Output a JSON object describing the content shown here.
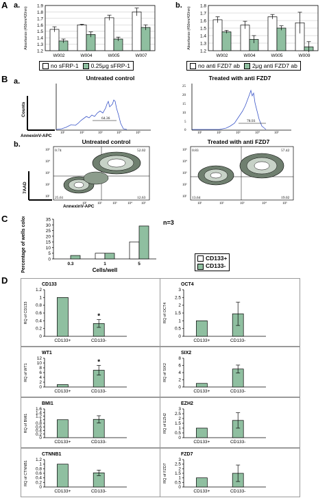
{
  "panel_labels": {
    "A": "A",
    "A_a": "a.",
    "A_b": "b.",
    "B": "B",
    "B_a": "a.",
    "B_b": "b.",
    "C": "C",
    "D": "D"
  },
  "colors": {
    "bar_white": "#ffffff",
    "bar_green": "#8fbfa0",
    "line_blue": "#3a55c8"
  },
  "chart_data": [
    {
      "id": "A_a",
      "type": "bar",
      "ylabel": "Absorbance (450nm/420nm)",
      "categories": [
        "W002",
        "W004",
        "W005",
        "W007"
      ],
      "ylim": [
        1.2,
        1.9
      ],
      "yticks": [
        "1.9",
        "1.8",
        "1.7",
        "1.6",
        "1.5",
        "1.4",
        "1.3",
        "1.2"
      ],
      "series": [
        {
          "name": "no sFRP-1",
          "values": [
            1.53,
            1.6,
            1.71,
            1.8
          ],
          "errors": [
            0.04,
            0.01,
            0.04,
            0.06
          ]
        },
        {
          "name": "0.25μg sFRP-1",
          "values": [
            1.35,
            1.45,
            1.38,
            1.56
          ],
          "errors": [
            0.03,
            0.04,
            0.03,
            0.04
          ]
        }
      ]
    },
    {
      "id": "A_b",
      "type": "bar",
      "ylabel": "Absorbance (450nm/420nm)",
      "categories": [
        "W002",
        "W004",
        "W005",
        "W009"
      ],
      "ylim": [
        1.2,
        1.8
      ],
      "yticks": [
        "1.8",
        "1.7",
        "1.6",
        "1.5",
        "1.4",
        "1.3",
        "1.2"
      ],
      "series": [
        {
          "name": "no anti FZD7 ab",
          "values": [
            1.61,
            1.54,
            1.65,
            1.57
          ],
          "errors": [
            0.04,
            0.05,
            0.03,
            0.14
          ]
        },
        {
          "name": "2μg anti FZD7 ab",
          "values": [
            1.45,
            1.35,
            1.5,
            1.25
          ],
          "errors": [
            0.02,
            0.05,
            0.03,
            0.07
          ]
        }
      ]
    },
    {
      "id": "C",
      "type": "bar",
      "title": "n=3",
      "xlabel": "Cells/well",
      "ylabel": "Percentage of wells colonized",
      "categories": [
        "0.3",
        "1",
        "5"
      ],
      "ylim": [
        0,
        35
      ],
      "yticks": [
        "35",
        "30",
        "25",
        "20",
        "15",
        "10",
        "5",
        "0"
      ],
      "series": [
        {
          "name": "CD133+",
          "values": [
            0,
            5,
            15
          ]
        },
        {
          "name": "CD133-",
          "values": [
            3,
            5,
            29
          ]
        }
      ]
    },
    {
      "id": "D_CD133",
      "type": "bar",
      "title": "CD133",
      "ylabel": "RQ of CD133",
      "categories": [
        "CD133+",
        "CD133-"
      ],
      "ylim": [
        0,
        1.2
      ],
      "yticks": [
        "1.2",
        "1",
        "0.8",
        "0.6",
        "0.4",
        "0.2",
        "0"
      ],
      "values": [
        1.0,
        0.33
      ],
      "errors": [
        0,
        0.1
      ],
      "star": [
        false,
        true
      ]
    },
    {
      "id": "D_OCT4",
      "type": "bar",
      "title": "OCT4",
      "ylabel": "RQ of OCT4",
      "categories": [
        "CD133+",
        "CD133-"
      ],
      "ylim": [
        0,
        3
      ],
      "yticks": [
        "3",
        "2.5",
        "2",
        "1.5",
        "1",
        "0.5",
        "0"
      ],
      "values": [
        1.0,
        1.45
      ],
      "errors": [
        0,
        0.75
      ],
      "star": [
        false,
        false
      ]
    },
    {
      "id": "D_WT1",
      "type": "bar",
      "title": "WT1",
      "ylabel": "RQ of WT1",
      "categories": [
        "CD133+",
        "CD133-"
      ],
      "ylim": [
        0,
        12
      ],
      "yticks": [
        "12",
        "10",
        "8",
        "6",
        "4",
        "2",
        "0"
      ],
      "values": [
        1.0,
        7.0
      ],
      "errors": [
        0,
        2.0
      ],
      "star": [
        false,
        true
      ]
    },
    {
      "id": "D_SIX2",
      "type": "bar",
      "title": "SIX2",
      "ylabel": "RQ of SIX2",
      "categories": [
        "CD133+",
        "CD133-"
      ],
      "ylim": [
        0,
        8
      ],
      "yticks": [
        "8",
        "6",
        "4",
        "2",
        "0"
      ],
      "values": [
        1.0,
        5.0
      ],
      "errors": [
        0,
        1.1
      ],
      "star": [
        false,
        false
      ]
    },
    {
      "id": "D_BMI1",
      "type": "bar",
      "title": "BMI1",
      "ylabel": "RQ of BMI1",
      "categories": [
        "CD133+",
        "CD133-"
      ],
      "ylim": [
        0,
        1.6
      ],
      "yticks": [
        "1.6",
        "1.4",
        "1.2",
        "1",
        "0.8",
        "0.6",
        "0.4",
        "0.2",
        "0"
      ],
      "values": [
        1.0,
        1.02
      ],
      "errors": [
        0,
        0.2
      ],
      "star": [
        false,
        false
      ]
    },
    {
      "id": "D_EZH2",
      "type": "bar",
      "title": "EZH2",
      "ylabel": "RQ of EZH2",
      "categories": [
        "CD133+",
        "CD133-"
      ],
      "ylim": [
        0,
        3
      ],
      "yticks": [
        "3",
        "2.5",
        "2",
        "1.5",
        "1",
        "0.5",
        "0"
      ],
      "values": [
        1.0,
        1.8
      ],
      "errors": [
        0,
        0.8
      ],
      "star": [
        false,
        false
      ]
    },
    {
      "id": "D_CTNNB1",
      "type": "bar",
      "title": "CTNNB1",
      "ylabel": "RQ of CTNNB1",
      "categories": [
        "CD133+",
        "CD133-"
      ],
      "ylim": [
        0,
        1.2
      ],
      "yticks": [
        "1.2",
        "1",
        "0.8",
        "0.6",
        "0.4",
        "0.2",
        "0"
      ],
      "values": [
        1.0,
        0.62
      ],
      "errors": [
        0,
        0.12
      ],
      "star": [
        false,
        false
      ]
    },
    {
      "id": "D_FZD7",
      "type": "bar",
      "title": "FZD7",
      "ylabel": "RQ of FZD7",
      "categories": [
        "CD133+",
        "CD133-"
      ],
      "ylim": [
        0,
        3
      ],
      "yticks": [
        "3",
        "2.5",
        "2",
        "1.5",
        "1",
        "0.5",
        "0"
      ],
      "values": [
        1.0,
        1.5
      ],
      "errors": [
        0,
        0.9
      ],
      "star": [
        false,
        false
      ]
    }
  ],
  "flow": {
    "hist_left": {
      "title": "Untreated control",
      "ylabel": "Counts",
      "xlabel": "AnnexinV-APC",
      "percent": "64.36",
      "xticks": [
        "10¹",
        "10²",
        "10³",
        "10⁴",
        "10⁵"
      ]
    },
    "hist_right": {
      "title": "Treated with anti FZD7",
      "yticks": [
        "25",
        "20",
        "15",
        "10",
        "5",
        "0"
      ],
      "percent": "78.93",
      "xticks": [
        "10¹",
        "10²",
        "10³",
        "10⁴",
        "10⁵"
      ]
    },
    "dot_left": {
      "title": "Untreated control",
      "ylabel": "7AAD",
      "xlabel": "AnnexinV-APC",
      "q_ul": "0.74",
      "q_ur": "52.02",
      "q_ll": "25.61",
      "q_lr": "12.63",
      "yticks": [
        "10⁵",
        "10⁴",
        "10³",
        "10²",
        "10¹"
      ],
      "xticks": [
        "10¹",
        "10²",
        "10³",
        "10⁴",
        "10⁵"
      ]
    },
    "dot_right": {
      "title": "Treated with anti FZD7",
      "q_ul": "0.83",
      "q_ur": "57.42",
      "q_ll": "13.64",
      "q_lr": "19.02",
      "yticks": [
        "10⁵",
        "10⁴",
        "10³",
        "10²",
        "10¹"
      ],
      "xticks": [
        "10¹",
        "10²",
        "10³",
        "10⁴",
        "10⁵"
      ]
    }
  }
}
